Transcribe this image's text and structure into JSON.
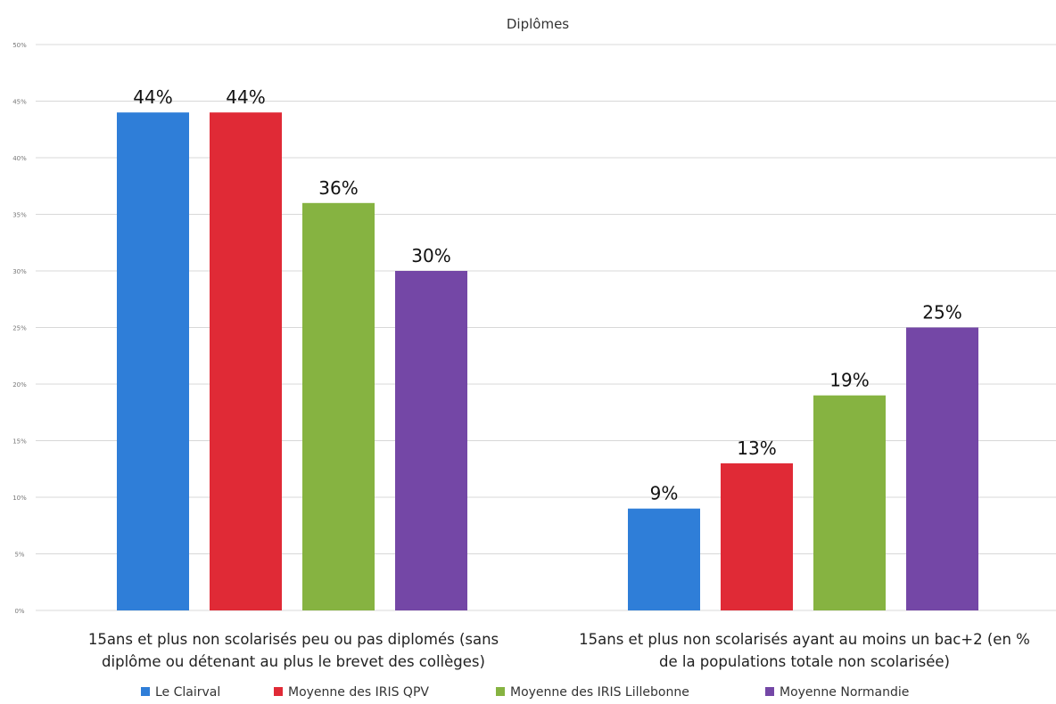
{
  "chart_data": {
    "type": "bar",
    "title": "Diplômes",
    "categories": [
      [
        "15ans et plus non scolarisés peu ou pas diplomés (sans",
        "diplôme ou détenant au plus le brevet des collèges)"
      ],
      [
        "15ans et plus non scolarisés ayant au moins un bac+2 (en %",
        "de la populations totale non scolarisée)"
      ]
    ],
    "series": [
      {
        "name": "Le Clairval",
        "color": "#2f7ed8",
        "values": [
          44,
          9
        ]
      },
      {
        "name": "Moyenne des IRIS QPV",
        "color": "#e02a36",
        "values": [
          44,
          13
        ]
      },
      {
        "name": "Moyenne des IRIS Lillebonne",
        "color": "#86b341",
        "values": [
          36,
          19
        ]
      },
      {
        "name": "Moyenne Normandie",
        "color": "#7447a6",
        "values": [
          30,
          25
        ]
      }
    ],
    "data_labels": [
      [
        "44%",
        "9%"
      ],
      [
        "44%",
        "13%"
      ],
      [
        "36%",
        "19%"
      ],
      [
        "30%",
        "25%"
      ]
    ],
    "ylim": [
      0,
      50
    ],
    "yticks": [
      0,
      5,
      10,
      15,
      20,
      25,
      30,
      35,
      40,
      45,
      50
    ],
    "ytick_labels": [
      "0%",
      "5%",
      "10%",
      "15%",
      "20%",
      "25%",
      "30%",
      "35%",
      "40%",
      "45%",
      "50%"
    ],
    "grid": true,
    "legend_position": "bottom"
  }
}
